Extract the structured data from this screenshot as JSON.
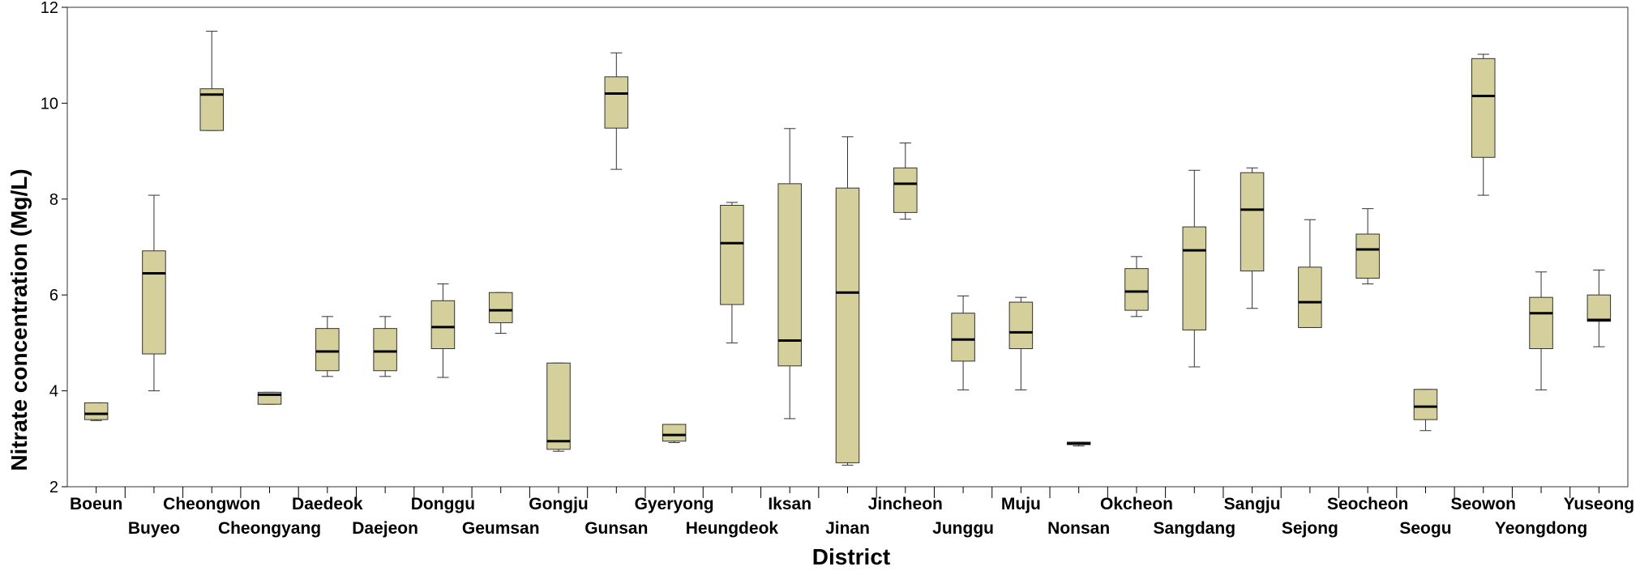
{
  "chart_data": {
    "type": "box",
    "xlabel": "District",
    "ylabel": "Nitrate concentration (Mg/L)",
    "ylim": [
      2,
      12
    ],
    "yticks": [
      "2",
      "4",
      "6",
      "8",
      "10",
      "12"
    ],
    "box_color": "#d4cf9b",
    "categories": [
      "Boeun",
      "Buyeo",
      "Cheongwon",
      "Cheongyang",
      "Daedeok",
      "Daejeon",
      "Donggu",
      "Geumsan",
      "Gongju",
      "Gunsan",
      "Gyeryong",
      "Heungdeok",
      "Iksan",
      "Jinan",
      "Jincheon",
      "Junggu",
      "Muju",
      "Nonsan",
      "Okcheon",
      "Sangdang",
      "Sangju",
      "Sejong",
      "Seocheon",
      "Seogu",
      "Seowon",
      "Yeongdong",
      "Yuseong"
    ],
    "boxes": [
      {
        "min": 3.38,
        "q1": 3.4,
        "median": 3.52,
        "q3": 3.75,
        "max": 3.75
      },
      {
        "min": 4.0,
        "q1": 4.77,
        "median": 6.45,
        "q3": 6.92,
        "max": 8.08
      },
      {
        "min": 9.43,
        "q1": 9.43,
        "median": 10.18,
        "q3": 10.3,
        "max": 11.5
      },
      {
        "min": 3.72,
        "q1": 3.72,
        "median": 3.92,
        "q3": 3.97,
        "max": 3.97
      },
      {
        "min": 4.3,
        "q1": 4.42,
        "median": 4.82,
        "q3": 5.3,
        "max": 5.55
      },
      {
        "min": 4.3,
        "q1": 4.42,
        "median": 4.82,
        "q3": 5.3,
        "max": 5.55
      },
      {
        "min": 4.28,
        "q1": 4.88,
        "median": 5.33,
        "q3": 5.88,
        "max": 6.23
      },
      {
        "min": 5.2,
        "q1": 5.42,
        "median": 5.68,
        "q3": 6.05,
        "max": 6.05
      },
      {
        "min": 2.74,
        "q1": 2.78,
        "median": 2.95,
        "q3": 4.58,
        "max": 4.58
      },
      {
        "min": 8.62,
        "q1": 9.48,
        "median": 10.2,
        "q3": 10.55,
        "max": 11.05
      },
      {
        "min": 2.92,
        "q1": 2.95,
        "median": 3.08,
        "q3": 3.3,
        "max": 3.3
      },
      {
        "min": 5.0,
        "q1": 5.8,
        "median": 7.08,
        "q3": 7.87,
        "max": 7.93
      },
      {
        "min": 3.42,
        "q1": 4.52,
        "median": 5.05,
        "q3": 8.32,
        "max": 9.47
      },
      {
        "min": 2.45,
        "q1": 2.5,
        "median": 6.05,
        "q3": 8.23,
        "max": 9.3
      },
      {
        "min": 7.58,
        "q1": 7.72,
        "median": 8.32,
        "q3": 8.65,
        "max": 9.17
      },
      {
        "min": 4.02,
        "q1": 4.62,
        "median": 5.07,
        "q3": 5.62,
        "max": 5.98
      },
      {
        "min": 4.02,
        "q1": 4.88,
        "median": 5.22,
        "q3": 5.85,
        "max": 5.95
      },
      {
        "min": 2.85,
        "q1": 2.88,
        "median": 2.9,
        "q3": 2.93,
        "max": 2.93
      },
      {
        "min": 5.55,
        "q1": 5.68,
        "median": 6.07,
        "q3": 6.55,
        "max": 6.8
      },
      {
        "min": 4.5,
        "q1": 5.27,
        "median": 6.93,
        "q3": 7.42,
        "max": 8.6
      },
      {
        "min": 5.72,
        "q1": 6.5,
        "median": 7.78,
        "q3": 8.55,
        "max": 8.65
      },
      {
        "min": 5.32,
        "q1": 5.32,
        "median": 5.85,
        "q3": 6.58,
        "max": 7.57
      },
      {
        "min": 6.23,
        "q1": 6.35,
        "median": 6.95,
        "q3": 7.27,
        "max": 7.8
      },
      {
        "min": 3.17,
        "q1": 3.4,
        "median": 3.67,
        "q3": 4.03,
        "max": 4.03
      },
      {
        "min": 8.08,
        "q1": 8.87,
        "median": 10.15,
        "q3": 10.93,
        "max": 11.02
      },
      {
        "min": 4.02,
        "q1": 4.88,
        "median": 5.62,
        "q3": 5.95,
        "max": 6.48
      },
      {
        "min": 4.92,
        "q1": 5.45,
        "median": 5.48,
        "q3": 6.0,
        "max": 6.52
      }
    ]
  }
}
